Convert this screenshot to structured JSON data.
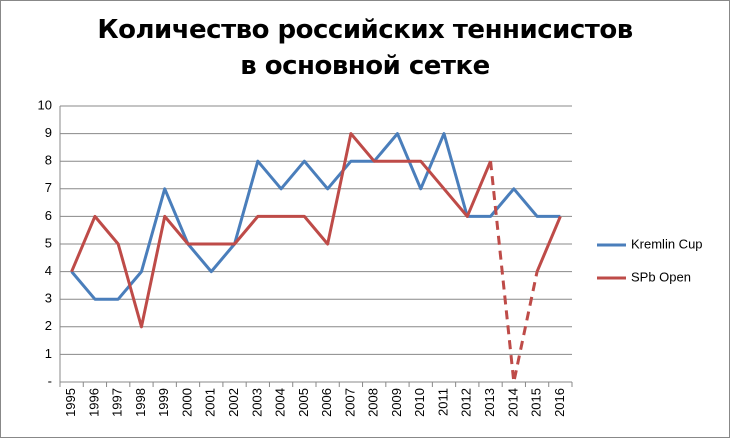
{
  "chart_data": {
    "type": "line",
    "title": "Количество российских теннисистов в основной сетке",
    "categories": [
      "1995",
      "1996",
      "1997",
      "1998",
      "1999",
      "2000",
      "2001",
      "2002",
      "2003",
      "2004",
      "2005",
      "2006",
      "2007",
      "2008",
      "2009",
      "2010",
      "2011",
      "2012",
      "2013",
      "2014",
      "2015",
      "2016"
    ],
    "series": [
      {
        "name": "Kremlin Cup",
        "color": "#4a7ebb",
        "values": [
          4,
          3,
          3,
          4,
          7,
          5,
          4,
          5,
          8,
          7,
          8,
          7,
          8,
          8,
          9,
          7,
          9,
          6,
          6,
          7,
          6,
          6
        ]
      },
      {
        "name": "SPb Open",
        "color": "#be4b48",
        "values": [
          4,
          6,
          5,
          2,
          6,
          5,
          5,
          5,
          6,
          6,
          6,
          5,
          9,
          8,
          8,
          8,
          7,
          6,
          8,
          0,
          4,
          6
        ],
        "dash_range": [
          18,
          20
        ]
      }
    ],
    "ylim": [
      0,
      10
    ],
    "yticks": [
      {
        "value": 0,
        "label": "-"
      },
      1,
      2,
      3,
      4,
      5,
      6,
      7,
      8,
      9,
      10
    ],
    "grid": true,
    "legend": "right"
  }
}
